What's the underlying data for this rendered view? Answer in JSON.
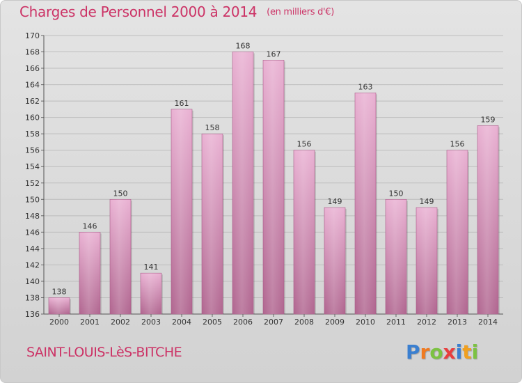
{
  "chart_data": {
    "type": "bar",
    "title": "Charges de Personnel 2000 à 2014",
    "subtitle": "(en milliers d'€)",
    "categories": [
      "2000",
      "2001",
      "2002",
      "2003",
      "2004",
      "2005",
      "2006",
      "2007",
      "2008",
      "2009",
      "2010",
      "2011",
      "2012",
      "2013",
      "2014"
    ],
    "values": [
      138,
      146,
      150,
      141,
      161,
      158,
      168,
      167,
      156,
      149,
      163,
      150,
      149,
      156,
      159
    ],
    "ylim": [
      136,
      170
    ],
    "yticks": [
      136,
      138,
      140,
      142,
      144,
      146,
      148,
      150,
      152,
      154,
      156,
      158,
      160,
      162,
      164,
      166,
      168,
      170
    ],
    "grid": true,
    "xlabel": "",
    "ylabel": ""
  },
  "footer": {
    "commune": "SAINT-LOUIS-LèS-BITCHE",
    "brand": "Proxiti"
  },
  "colors": {
    "title": "#cc3366",
    "bar_light": "#e6a8cc",
    "bar_dark": "#b56a95",
    "grid": "#bdbdbd",
    "logo_letters": [
      "#3a7fd0",
      "#f07a20",
      "#7cc242",
      "#e83e3e",
      "#3a7fd0",
      "#f0a020",
      "#7cc242"
    ]
  }
}
